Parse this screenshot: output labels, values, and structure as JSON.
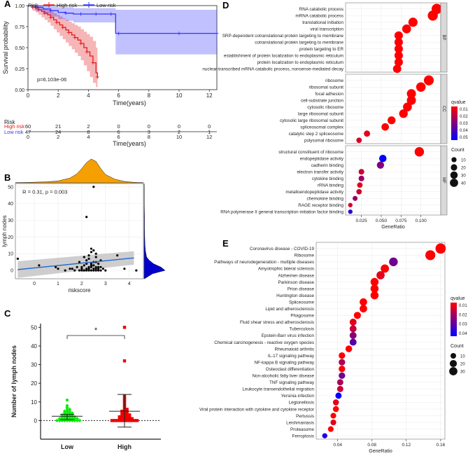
{
  "colors": {
    "high_risk": "#E41A1C",
    "low_risk": "#3333FF",
    "density_top": "#F5A000",
    "density_right": "#0000CC",
    "low_group": "#00EE00",
    "high_group": "#EE0000",
    "scatter_point": "#000000",
    "regression": "#2166CC",
    "ci_band": "#BDBDBD",
    "facet_strip": "#D9D9D9",
    "panel_bg": "#EBEBEB"
  },
  "chart_data": [
    {
      "id": "A",
      "panel_label": "A",
      "type": "line",
      "subtype": "kaplan-meier",
      "legend_title": "Risk",
      "legend": [
        "High risk",
        "Low risk"
      ],
      "xlabel": "Time(years)",
      "ylabel": "Survival probability",
      "xlim": [
        0,
        12.5
      ],
      "ylim": [
        0,
        1.0
      ],
      "xticks": [
        0,
        2,
        4,
        6,
        8,
        10,
        12
      ],
      "yticks": [
        0,
        0.25,
        0.5,
        0.75,
        1.0
      ],
      "ytick_labels": [
        "0.00",
        "0.25",
        "0.50",
        "0.75",
        "1.00"
      ],
      "pvalue": "p=6.103e-06",
      "series": [
        {
          "name": "High risk",
          "color": "#E41A1C",
          "x": [
            0,
            0.3,
            0.5,
            0.7,
            0.9,
            1.1,
            1.3,
            1.5,
            1.7,
            1.9,
            2.1,
            2.3,
            2.5,
            2.7,
            2.9,
            3.1,
            3.3,
            3.5,
            3.7,
            3.9,
            4.1,
            4.3,
            4.5,
            4.6
          ],
          "y": [
            1.0,
            0.98,
            0.97,
            0.95,
            0.93,
            0.91,
            0.89,
            0.86,
            0.83,
            0.8,
            0.77,
            0.74,
            0.71,
            0.68,
            0.65,
            0.62,
            0.59,
            0.55,
            0.5,
            0.45,
            0.4,
            0.32,
            0.2,
            0.15
          ],
          "upper": [
            1.0,
            1.0,
            1.0,
            0.99,
            0.97,
            0.96,
            0.95,
            0.93,
            0.91,
            0.89,
            0.87,
            0.85,
            0.83,
            0.81,
            0.79,
            0.77,
            0.75,
            0.72,
            0.69,
            0.66,
            0.63,
            0.58,
            0.5,
            0.46
          ],
          "lower": [
            1.0,
            0.94,
            0.92,
            0.89,
            0.86,
            0.83,
            0.8,
            0.76,
            0.72,
            0.68,
            0.64,
            0.6,
            0.56,
            0.52,
            0.48,
            0.44,
            0.4,
            0.35,
            0.29,
            0.22,
            0.15,
            0.08,
            0.03,
            0.02
          ]
        },
        {
          "name": "Low risk",
          "color": "#3333FF",
          "x": [
            0,
            0.5,
            1.0,
            1.5,
            2.0,
            2.5,
            3.0,
            3.5,
            4.0,
            4.5,
            5.0,
            5.5,
            5.8,
            6.0,
            8.0,
            10.0,
            12.0,
            12.5
          ],
          "y": [
            1.0,
            0.98,
            0.96,
            0.94,
            0.92,
            0.91,
            0.9,
            0.9,
            0.9,
            0.9,
            0.9,
            0.9,
            0.67,
            0.67,
            0.67,
            0.67,
            0.67,
            0.67
          ],
          "upper": [
            1.0,
            1.0,
            1.0,
            0.99,
            0.98,
            0.98,
            0.97,
            0.97,
            0.97,
            0.97,
            0.97,
            0.97,
            0.95,
            0.95,
            0.95,
            0.95,
            0.95,
            0.95
          ],
          "lower": [
            1.0,
            0.94,
            0.9,
            0.87,
            0.84,
            0.82,
            0.8,
            0.8,
            0.8,
            0.8,
            0.8,
            0.8,
            0.42,
            0.42,
            0.42,
            0.42,
            0.42,
            0.42
          ]
        }
      ],
      "risk_table": {
        "title": "Risk",
        "xlabel": "Time(years)",
        "times": [
          0,
          2,
          4,
          6,
          8,
          10,
          12
        ],
        "rows": [
          {
            "name": "High risk",
            "values": [
              60,
              21,
              2,
              0,
              0,
              0,
              0
            ]
          },
          {
            "name": "Low risk",
            "values": [
              47,
              24,
              8,
              6,
              3,
              2,
              1
            ]
          }
        ]
      }
    },
    {
      "id": "B",
      "panel_label": "B",
      "type": "scatter",
      "xlabel": "riskscore",
      "ylabel": "lymph nodes",
      "xlim": [
        -0.8,
        4.6
      ],
      "ylim": [
        -5,
        52
      ],
      "xticks": [
        0,
        1,
        2,
        3,
        4
      ],
      "yticks": [
        0,
        10,
        20,
        30,
        40,
        50
      ],
      "annotation": "R = 0.31, p = 0.003",
      "regression": {
        "x0": -0.7,
        "y0": 0.5,
        "x1": 4.2,
        "y1": 7.5,
        "ci_low_x0": -4.5,
        "ci_high_x0": 5.5,
        "ci_low_x1": 3.5,
        "ci_high_x1": 11.5
      },
      "x": [
        -0.7,
        0.2,
        0.9,
        1.0,
        1.3,
        1.5,
        1.7,
        1.8,
        1.9,
        1.9,
        2.0,
        2.0,
        2.1,
        2.1,
        2.1,
        2.2,
        2.2,
        2.2,
        2.3,
        2.3,
        2.3,
        2.3,
        2.4,
        2.4,
        2.4,
        2.4,
        2.5,
        2.5,
        2.5,
        2.5,
        2.6,
        2.6,
        2.6,
        2.6,
        2.7,
        2.7,
        2.7,
        2.8,
        2.8,
        2.9,
        3.0,
        3.5,
        3.8,
        4.3,
        2.2,
        2.5,
        2.4,
        2.6,
        1.6,
        2.0,
        2.3,
        2.8,
        2.1,
        2.4,
        2.6,
        2.7,
        2.2,
        2.5
      ],
      "y": [
        7,
        3,
        2,
        1,
        0,
        1,
        0,
        2,
        0,
        5,
        0,
        1,
        0,
        3,
        8,
        0,
        1,
        6,
        0,
        1,
        2,
        9,
        0,
        2,
        4,
        13,
        0,
        1,
        3,
        12,
        0,
        2,
        5,
        10,
        0,
        1,
        4,
        0,
        2,
        1,
        0,
        9,
        1,
        0,
        32,
        50,
        11,
        8,
        1,
        2,
        7,
        6,
        0,
        3,
        1,
        2,
        4,
        5
      ],
      "density_top": {
        "x": [
          -0.8,
          -0.2,
          0.5,
          1.0,
          1.5,
          1.8,
          2.0,
          2.2,
          2.4,
          2.6,
          2.8,
          3.0,
          3.4,
          3.8,
          4.2,
          4.6
        ],
        "d": [
          0.01,
          0.02,
          0.04,
          0.08,
          0.2,
          0.38,
          0.6,
          0.85,
          1.0,
          0.9,
          0.6,
          0.35,
          0.15,
          0.06,
          0.02,
          0.01
        ]
      },
      "density_right": {
        "y": [
          -5,
          -2,
          0,
          2,
          4,
          6,
          8,
          12,
          16,
          20,
          25,
          32,
          40,
          50,
          52
        ],
        "d": [
          0.02,
          0.4,
          1.0,
          0.8,
          0.45,
          0.25,
          0.12,
          0.06,
          0.04,
          0.03,
          0.02,
          0.02,
          0.01,
          0.01,
          0.0
        ]
      }
    },
    {
      "id": "C",
      "panel_label": "C",
      "type": "scatter",
      "subtype": "dot-plot",
      "categories": [
        "Low",
        "High"
      ],
      "ylabel": "Number of lymph nodes",
      "ylim": [
        -10,
        52
      ],
      "yticks": [
        0,
        10,
        20,
        30,
        40,
        50
      ],
      "significance": "*",
      "series": [
        {
          "name": "Low",
          "color": "#00EE00",
          "mean": 2.3,
          "sd_low": 0.5,
          "sd_high": 3.3,
          "values": [
            0,
            0,
            0,
            0,
            0,
            0,
            0,
            0,
            0,
            0,
            1,
            1,
            1,
            1,
            1,
            1,
            1,
            1,
            2,
            2,
            2,
            2,
            2,
            2,
            3,
            3,
            3,
            3,
            3,
            4,
            4,
            4,
            4,
            5,
            5,
            5,
            6,
            6,
            7,
            8,
            11
          ]
        },
        {
          "name": "High",
          "color": "#EE0000",
          "mean": 5.0,
          "sd_low": -3.5,
          "sd_high": 14.0,
          "values": [
            0,
            0,
            0,
            0,
            0,
            0,
            0,
            0,
            0,
            0,
            0,
            1,
            1,
            1,
            1,
            1,
            1,
            2,
            2,
            2,
            2,
            2,
            3,
            3,
            3,
            3,
            4,
            4,
            4,
            5,
            5,
            5,
            6,
            6,
            7,
            8,
            9,
            10,
            11,
            12,
            13,
            32,
            50
          ]
        }
      ]
    },
    {
      "id": "D",
      "panel_label": "D",
      "type": "scatter",
      "subtype": "dotplot-enrichment",
      "xlabel": "GeneRatio",
      "xlim": [
        0.005,
        0.125
      ],
      "xticks": [
        0.025,
        0.05,
        0.075,
        0.1
      ],
      "xtick_labels": [
        "0.025",
        "0.050",
        "0.075",
        "0.100"
      ],
      "color_legend": {
        "title": "qvalue",
        "range": [
          0.0,
          0.05
        ],
        "ticks": [
          "0.01",
          "0.02",
          "0.03",
          "0.04",
          "0.05"
        ],
        "ends": [
          "#FF0000",
          "#0000FF"
        ]
      },
      "size_legend": {
        "title": "Count",
        "values": [
          10,
          20,
          30,
          40
        ]
      },
      "facets": [
        {
          "strip": "BP",
          "terms": [
            "RNA catabolic process",
            "mRNA catabolic process",
            "translational initiation",
            "viral transcription",
            "SRP-dependent cotranslational protein targeting to membrane",
            "cotranslational protein targeting to membrane",
            "protein targeting to ER",
            "establishment of protein localization to endoplasmic reticulum",
            "protein localization to endoplasmic reticulum",
            "nuclear-transcribed mRNA catabolic process, nonsense-mediated decay"
          ],
          "ratio": [
            0.12,
            0.115,
            0.09,
            0.082,
            0.072,
            0.072,
            0.072,
            0.072,
            0.072,
            0.07
          ],
          "count": [
            45,
            43,
            34,
            31,
            27,
            27,
            27,
            27,
            27,
            26
          ],
          "qvalue": [
            0.0,
            0.0,
            0.0,
            0.0,
            0.0,
            0.0,
            0.0,
            0.0,
            0.0,
            0.0
          ]
        },
        {
          "strip": "CC",
          "terms": [
            "ribosome",
            "ribosomal subunit",
            "focal adhesion",
            "cell-substrate junction",
            "cytosolic ribosome",
            "large ribosomal subunit",
            "cytosolic large ribosomal subunit",
            "spliceosomal complex",
            "catalytic step 2 spliceosome",
            "polysomal ribosome"
          ],
          "ratio": [
            0.11,
            0.1,
            0.088,
            0.088,
            0.083,
            0.078,
            0.063,
            0.055,
            0.032,
            0.022
          ],
          "count": [
            41,
            37,
            33,
            33,
            31,
            29,
            23,
            20,
            12,
            8
          ],
          "qvalue": [
            0.0,
            0.0,
            0.0,
            0.0,
            0.0,
            0.0,
            0.0,
            0.0,
            0.005,
            0.008
          ]
        },
        {
          "strip": "MF",
          "terms": [
            "structural constituent of ribosome",
            "endopeptidase activity",
            "cadherin binding",
            "electron transfer activity",
            "cytokine binding",
            "rRNA binding",
            "metalloendopeptidase activity",
            "chemokine binding",
            "RAGE receptor binding",
            "RNA polymerase II general transcription initiation factor binding"
          ],
          "ratio": [
            0.098,
            0.052,
            0.049,
            0.025,
            0.025,
            0.023,
            0.022,
            0.017,
            0.011,
            0.011
          ],
          "count": [
            36,
            19,
            18,
            9,
            9,
            8,
            8,
            6,
            4,
            4
          ],
          "qvalue": [
            0.0,
            0.05,
            0.025,
            0.01,
            0.02,
            0.005,
            0.01,
            0.02,
            0.008,
            0.04
          ]
        }
      ]
    },
    {
      "id": "E",
      "panel_label": "E",
      "type": "scatter",
      "subtype": "dotplot-enrichment",
      "xlabel": "GeneRatio",
      "xlim": [
        0.015,
        0.165
      ],
      "xticks": [
        0.04,
        0.08,
        0.12,
        0.16
      ],
      "xtick_labels": [
        "0.04",
        "0.08",
        "0.12",
        "0.16"
      ],
      "color_legend": {
        "title": "qvalue",
        "range": [
          0.0,
          0.045
        ],
        "ticks": [
          "0.01",
          "0.02",
          "0.03",
          "0.04"
        ],
        "ends": [
          "#FF0000",
          "#0000FF"
        ]
      },
      "size_legend": {
        "title": "Count",
        "values": [
          10,
          20,
          30
        ]
      },
      "terms": [
        "Coronavirus disease - COVID-19",
        "Ribosome",
        "Pathways of neurodegeneration - multiple diseases",
        "Amyotrophic lateral sclerosis",
        "Alzheimer disease",
        "Parkinson disease",
        "Prion disease",
        "Huntington disease",
        "Spliceosome",
        "Lipid and atherosclerosis",
        "Phagosome",
        "Fluid shear stress and atherosclerosis",
        "Tuberculosis",
        "Epstein-Barr virus infection",
        "Chemical carcinogenesis - reactive oxygen species",
        "Rheumatoid arthritis",
        "IL-17 signaling pathway",
        "NF-kappa B signaling pathway",
        "Osteoclast differentiation",
        "Non-alcoholic fatty liver disease",
        "TNF signaling pathway",
        "Leukocyte transendothelial migration",
        "Yersinia infection",
        "Legionellosis",
        "Viral protein interaction with cytokine and cytokine receptor",
        "Pertussis",
        "Leishmaniasis",
        "Proteasome",
        "Ferroptosis"
      ],
      "ratio": [
        0.16,
        0.148,
        0.105,
        0.095,
        0.09,
        0.083,
        0.083,
        0.083,
        0.07,
        0.07,
        0.063,
        0.058,
        0.058,
        0.058,
        0.058,
        0.053,
        0.045,
        0.045,
        0.045,
        0.045,
        0.043,
        0.043,
        0.041,
        0.038,
        0.038,
        0.035,
        0.035,
        0.032,
        0.025
      ],
      "count": [
        34,
        31,
        22,
        20,
        19,
        18,
        18,
        18,
        15,
        15,
        13,
        12,
        12,
        12,
        12,
        11,
        10,
        10,
        10,
        10,
        9,
        9,
        9,
        8,
        8,
        7,
        7,
        7,
        5
      ],
      "qvalue": [
        0.0,
        0.0,
        0.025,
        0.0,
        0.005,
        0.0,
        0.0,
        0.0,
        0.0,
        0.0,
        0.0,
        0.005,
        0.01,
        0.02,
        0.03,
        0.0,
        0.0,
        0.015,
        0.0,
        0.025,
        0.015,
        0.01,
        0.045,
        0.005,
        0.0,
        0.0,
        0.005,
        0.0,
        0.04
      ]
    }
  ]
}
